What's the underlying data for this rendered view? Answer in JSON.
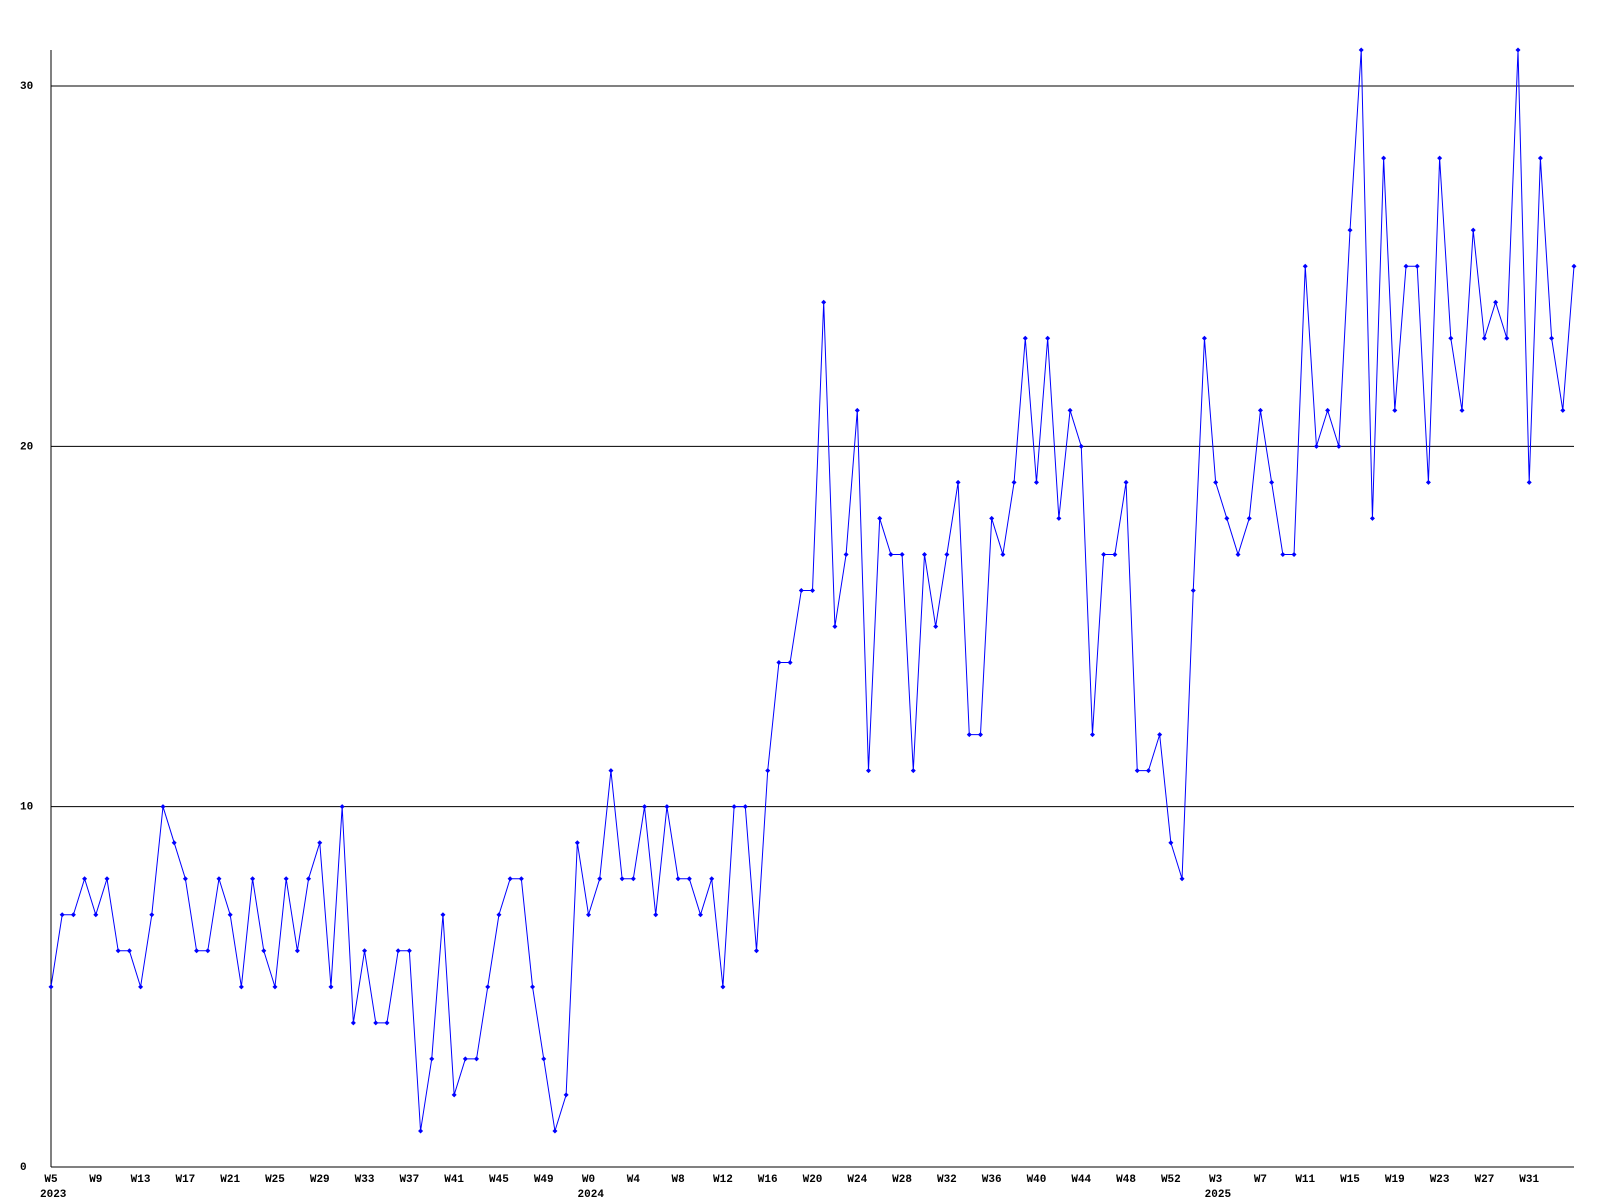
{
  "chart_data": {
    "type": "line",
    "categories": [
      "W5",
      null,
      null,
      null,
      "W9",
      null,
      null,
      null,
      "W13",
      null,
      null,
      null,
      "W17",
      null,
      null,
      null,
      "W21",
      null,
      null,
      null,
      "W25",
      null,
      null,
      null,
      "W29",
      null,
      null,
      null,
      "W33",
      null,
      null,
      null,
      "W37",
      null,
      null,
      null,
      "W41",
      null,
      null,
      null,
      "W45",
      null,
      null,
      null,
      "W49",
      null,
      null,
      null,
      "W0",
      null,
      null,
      null,
      "W4",
      null,
      null,
      null,
      "W8",
      null,
      null,
      null,
      "W12",
      null,
      null,
      null,
      "W16",
      null,
      null,
      null,
      "W20",
      null,
      null,
      null,
      "W24",
      null,
      null,
      null,
      "W28",
      null,
      null,
      null,
      "W32",
      null,
      null,
      null,
      "W36",
      null,
      null,
      null,
      "W40",
      null,
      null,
      null,
      "W44",
      null,
      null,
      null,
      "W48",
      null,
      null,
      null,
      "W52",
      null,
      null,
      null,
      "W3",
      null,
      null,
      null,
      "W7",
      null,
      null,
      null,
      "W11",
      null,
      null,
      null,
      "W15",
      null,
      null,
      null,
      "W19",
      null,
      null,
      null,
      "W23",
      null,
      null,
      null,
      "W27",
      null,
      null,
      null,
      "W31",
      null,
      null,
      null,
      null
    ],
    "years": [
      "2023",
      null,
      null,
      null,
      null,
      null,
      null,
      null,
      null,
      null,
      null,
      null,
      null,
      null,
      null,
      null,
      null,
      null,
      null,
      null,
      null,
      null,
      null,
      null,
      null,
      null,
      null,
      null,
      null,
      null,
      null,
      null,
      null,
      null,
      null,
      null,
      null,
      null,
      null,
      null,
      null,
      null,
      null,
      null,
      null,
      null,
      null,
      null,
      "2024",
      null,
      null,
      null,
      null,
      null,
      null,
      null,
      null,
      null,
      null,
      null,
      null,
      null,
      null,
      null,
      null,
      null,
      null,
      null,
      null,
      null,
      null,
      null,
      null,
      null,
      null,
      null,
      null,
      null,
      null,
      null,
      null,
      null,
      null,
      null,
      null,
      null,
      null,
      null,
      null,
      null,
      null,
      null,
      null,
      null,
      null,
      null,
      null,
      null,
      null,
      null,
      null,
      null,
      null,
      null,
      "2025",
      null,
      null,
      null,
      null,
      null,
      null,
      null,
      null,
      null,
      null,
      null,
      null,
      null,
      null,
      null,
      null,
      null,
      null,
      null,
      null,
      null,
      null,
      null,
      null,
      null,
      null,
      null,
      null,
      null,
      null,
      null
    ],
    "series": [
      {
        "color": "#0000ff",
        "values": [
          5,
          7,
          7,
          8,
          7,
          8,
          6,
          6,
          5,
          7,
          10,
          9,
          8,
          6,
          6,
          8,
          7,
          5,
          8,
          6,
          5,
          8,
          6,
          8,
          9,
          5,
          10,
          4,
          6,
          4,
          4,
          6,
          6,
          1,
          3,
          7,
          2,
          3,
          3,
          5,
          7,
          8,
          8,
          5,
          3,
          1,
          2,
          9,
          7,
          8,
          11,
          8,
          8,
          10,
          7,
          10,
          8,
          8,
          7,
          8,
          5,
          10,
          10,
          6,
          11,
          14,
          14,
          16,
          16,
          24,
          15,
          17,
          21,
          11,
          18,
          17,
          17,
          11,
          17,
          15,
          17,
          19,
          12,
          12,
          18,
          17,
          19,
          23,
          19,
          23,
          18,
          21,
          20,
          12,
          17,
          17,
          19,
          11,
          11,
          12,
          9,
          8,
          16,
          23,
          19,
          18,
          17,
          18,
          21,
          19,
          17,
          17,
          25,
          20,
          21,
          20,
          26,
          31,
          18,
          28,
          21,
          25,
          25,
          19,
          28,
          23,
          21,
          26,
          23,
          24,
          23,
          31,
          19,
          28,
          23,
          21,
          25
        ]
      }
    ],
    "ylim": [
      0,
      31
    ],
    "yticks": [
      0,
      10,
      20,
      30
    ],
    "grid": true
  }
}
